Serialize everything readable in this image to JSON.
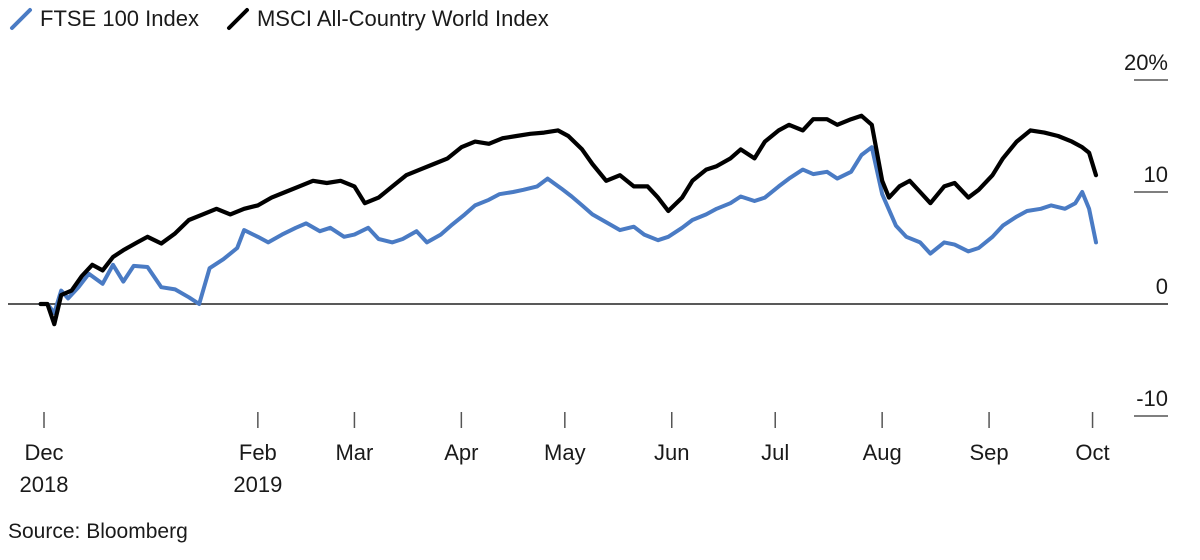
{
  "legend": {
    "items": [
      {
        "label": "FTSE 100 Index",
        "color": "#4a7bc4"
      },
      {
        "label": "MSCI All-Country World Index",
        "color": "#000000"
      }
    ],
    "placement": "top-left"
  },
  "source": "Source: Bloomberg",
  "chart_data": {
    "type": "line",
    "title": "",
    "xlabel": "",
    "ylabel": "",
    "y_unit_suffix": "%",
    "ylim": [
      -10,
      20
    ],
    "yticks": [
      20,
      10,
      0,
      -10
    ],
    "ytick_labels": [
      "20%",
      "10",
      "0",
      "-10"
    ],
    "grid": false,
    "zero_line": true,
    "x_range": [
      "2018-12-01",
      "2019-10-02"
    ],
    "x_ticks": [
      {
        "date": "2018-12-01",
        "label": [
          "Dec",
          "2018"
        ]
      },
      {
        "date": "2019-02-01",
        "label": [
          "Feb",
          "2019"
        ]
      },
      {
        "date": "2019-03-01",
        "label": [
          "Mar"
        ]
      },
      {
        "date": "2019-04-01",
        "label": [
          "Apr"
        ]
      },
      {
        "date": "2019-05-01",
        "label": [
          "May"
        ]
      },
      {
        "date": "2019-06-01",
        "label": [
          "Jun"
        ]
      },
      {
        "date": "2019-07-01",
        "label": [
          "Jul"
        ]
      },
      {
        "date": "2019-08-01",
        "label": [
          "Aug"
        ]
      },
      {
        "date": "2019-09-01",
        "label": [
          "Sep"
        ]
      },
      {
        "date": "2019-10-01",
        "label": [
          "Oct"
        ]
      }
    ],
    "series": [
      {
        "name": "FTSE 100 Index",
        "color": "#4a7bc4",
        "points": [
          [
            "2018-11-30",
            0.0
          ],
          [
            "2018-12-02",
            0.0
          ],
          [
            "2018-12-04",
            -0.8
          ],
          [
            "2018-12-06",
            1.2
          ],
          [
            "2018-12-08",
            0.5
          ],
          [
            "2018-12-11",
            1.5
          ],
          [
            "2018-12-14",
            2.7
          ],
          [
            "2018-12-18",
            1.8
          ],
          [
            "2018-12-21",
            3.5
          ],
          [
            "2018-12-24",
            2.0
          ],
          [
            "2018-12-27",
            3.4
          ],
          [
            "2018-12-31",
            3.3
          ],
          [
            "2019-01-04",
            1.5
          ],
          [
            "2019-01-08",
            1.3
          ],
          [
            "2019-01-12",
            0.6
          ],
          [
            "2019-01-15",
            0.0
          ],
          [
            "2019-01-18",
            3.2
          ],
          [
            "2019-01-22",
            4.0
          ],
          [
            "2019-01-26",
            5.0
          ],
          [
            "2019-01-28",
            6.6
          ],
          [
            "2019-02-01",
            6.0
          ],
          [
            "2019-02-04",
            5.5
          ],
          [
            "2019-02-08",
            6.2
          ],
          [
            "2019-02-12",
            6.8
          ],
          [
            "2019-02-15",
            7.2
          ],
          [
            "2019-02-19",
            6.5
          ],
          [
            "2019-02-22",
            6.8
          ],
          [
            "2019-02-26",
            6.0
          ],
          [
            "2019-03-01",
            6.2
          ],
          [
            "2019-03-05",
            6.8
          ],
          [
            "2019-03-08",
            5.8
          ],
          [
            "2019-03-12",
            5.5
          ],
          [
            "2019-03-15",
            5.8
          ],
          [
            "2019-03-19",
            6.5
          ],
          [
            "2019-03-22",
            5.5
          ],
          [
            "2019-03-26",
            6.2
          ],
          [
            "2019-03-29",
            7.0
          ],
          [
            "2019-04-02",
            8.0
          ],
          [
            "2019-04-05",
            8.8
          ],
          [
            "2019-04-09",
            9.3
          ],
          [
            "2019-04-12",
            9.8
          ],
          [
            "2019-04-16",
            10.0
          ],
          [
            "2019-04-19",
            10.2
          ],
          [
            "2019-04-23",
            10.5
          ],
          [
            "2019-04-26",
            11.2
          ],
          [
            "2019-04-30",
            10.3
          ],
          [
            "2019-05-03",
            9.6
          ],
          [
            "2019-05-06",
            8.8
          ],
          [
            "2019-05-09",
            8.0
          ],
          [
            "2019-05-13",
            7.3
          ],
          [
            "2019-05-17",
            6.6
          ],
          [
            "2019-05-21",
            6.9
          ],
          [
            "2019-05-24",
            6.2
          ],
          [
            "2019-05-28",
            5.7
          ],
          [
            "2019-05-31",
            6.0
          ],
          [
            "2019-06-04",
            6.8
          ],
          [
            "2019-06-07",
            7.5
          ],
          [
            "2019-06-11",
            8.0
          ],
          [
            "2019-06-14",
            8.5
          ],
          [
            "2019-06-18",
            9.0
          ],
          [
            "2019-06-21",
            9.6
          ],
          [
            "2019-06-25",
            9.2
          ],
          [
            "2019-06-28",
            9.5
          ],
          [
            "2019-07-02",
            10.5
          ],
          [
            "2019-07-05",
            11.2
          ],
          [
            "2019-07-09",
            12.0
          ],
          [
            "2019-07-12",
            11.6
          ],
          [
            "2019-07-16",
            11.8
          ],
          [
            "2019-07-19",
            11.2
          ],
          [
            "2019-07-23",
            11.8
          ],
          [
            "2019-07-26",
            13.3
          ],
          [
            "2019-07-29",
            14.0
          ],
          [
            "2019-08-01",
            9.8
          ],
          [
            "2019-08-05",
            7.0
          ],
          [
            "2019-08-08",
            6.0
          ],
          [
            "2019-08-12",
            5.5
          ],
          [
            "2019-08-15",
            4.5
          ],
          [
            "2019-08-19",
            5.5
          ],
          [
            "2019-08-22",
            5.3
          ],
          [
            "2019-08-26",
            4.7
          ],
          [
            "2019-08-29",
            5.0
          ],
          [
            "2019-09-02",
            6.0
          ],
          [
            "2019-09-05",
            7.0
          ],
          [
            "2019-09-09",
            7.8
          ],
          [
            "2019-09-12",
            8.3
          ],
          [
            "2019-09-16",
            8.5
          ],
          [
            "2019-09-19",
            8.8
          ],
          [
            "2019-09-23",
            8.5
          ],
          [
            "2019-09-26",
            9.0
          ],
          [
            "2019-09-28",
            10.0
          ],
          [
            "2019-09-30",
            8.5
          ],
          [
            "2019-10-02",
            5.5
          ]
        ]
      },
      {
        "name": "MSCI All-Country World Index",
        "color": "#000000",
        "points": [
          [
            "2018-11-30",
            0.0
          ],
          [
            "2018-12-02",
            0.0
          ],
          [
            "2018-12-04",
            -1.8
          ],
          [
            "2018-12-06",
            0.8
          ],
          [
            "2018-12-09",
            1.2
          ],
          [
            "2018-12-12",
            2.5
          ],
          [
            "2018-12-15",
            3.5
          ],
          [
            "2018-12-18",
            3.0
          ],
          [
            "2018-12-21",
            4.2
          ],
          [
            "2018-12-24",
            4.8
          ],
          [
            "2018-12-28",
            5.5
          ],
          [
            "2018-12-31",
            6.0
          ],
          [
            "2019-01-04",
            5.4
          ],
          [
            "2019-01-08",
            6.3
          ],
          [
            "2019-01-12",
            7.5
          ],
          [
            "2019-01-16",
            8.0
          ],
          [
            "2019-01-20",
            8.5
          ],
          [
            "2019-01-24",
            8.0
          ],
          [
            "2019-01-28",
            8.5
          ],
          [
            "2019-02-01",
            8.8
          ],
          [
            "2019-02-05",
            9.5
          ],
          [
            "2019-02-09",
            10.0
          ],
          [
            "2019-02-13",
            10.5
          ],
          [
            "2019-02-17",
            11.0
          ],
          [
            "2019-02-21",
            10.8
          ],
          [
            "2019-02-25",
            11.0
          ],
          [
            "2019-03-01",
            10.5
          ],
          [
            "2019-03-04",
            9.0
          ],
          [
            "2019-03-08",
            9.5
          ],
          [
            "2019-03-12",
            10.5
          ],
          [
            "2019-03-16",
            11.5
          ],
          [
            "2019-03-20",
            12.0
          ],
          [
            "2019-03-24",
            12.5
          ],
          [
            "2019-03-28",
            13.0
          ],
          [
            "2019-04-01",
            14.0
          ],
          [
            "2019-04-05",
            14.5
          ],
          [
            "2019-04-09",
            14.3
          ],
          [
            "2019-04-13",
            14.8
          ],
          [
            "2019-04-17",
            15.0
          ],
          [
            "2019-04-21",
            15.2
          ],
          [
            "2019-04-25",
            15.3
          ],
          [
            "2019-04-29",
            15.5
          ],
          [
            "2019-05-02",
            15.0
          ],
          [
            "2019-05-06",
            13.8
          ],
          [
            "2019-05-09",
            12.5
          ],
          [
            "2019-05-13",
            11.0
          ],
          [
            "2019-05-17",
            11.5
          ],
          [
            "2019-05-21",
            10.5
          ],
          [
            "2019-05-25",
            10.5
          ],
          [
            "2019-05-28",
            9.5
          ],
          [
            "2019-05-31",
            8.3
          ],
          [
            "2019-06-04",
            9.5
          ],
          [
            "2019-06-07",
            11.0
          ],
          [
            "2019-06-11",
            12.0
          ],
          [
            "2019-06-14",
            12.3
          ],
          [
            "2019-06-18",
            13.0
          ],
          [
            "2019-06-21",
            13.8
          ],
          [
            "2019-06-25",
            13.0
          ],
          [
            "2019-06-28",
            14.5
          ],
          [
            "2019-07-02",
            15.5
          ],
          [
            "2019-07-05",
            16.0
          ],
          [
            "2019-07-09",
            15.5
          ],
          [
            "2019-07-12",
            16.5
          ],
          [
            "2019-07-16",
            16.5
          ],
          [
            "2019-07-19",
            16.0
          ],
          [
            "2019-07-23",
            16.5
          ],
          [
            "2019-07-26",
            16.8
          ],
          [
            "2019-07-29",
            16.0
          ],
          [
            "2019-08-01",
            11.0
          ],
          [
            "2019-08-03",
            9.5
          ],
          [
            "2019-08-06",
            10.5
          ],
          [
            "2019-08-09",
            11.0
          ],
          [
            "2019-08-12",
            10.0
          ],
          [
            "2019-08-15",
            9.0
          ],
          [
            "2019-08-19",
            10.5
          ],
          [
            "2019-08-22",
            10.8
          ],
          [
            "2019-08-26",
            9.5
          ],
          [
            "2019-08-29",
            10.2
          ],
          [
            "2019-09-02",
            11.5
          ],
          [
            "2019-09-05",
            13.0
          ],
          [
            "2019-09-09",
            14.5
          ],
          [
            "2019-09-13",
            15.5
          ],
          [
            "2019-09-17",
            15.3
          ],
          [
            "2019-09-21",
            15.0
          ],
          [
            "2019-09-25",
            14.5
          ],
          [
            "2019-09-28",
            14.0
          ],
          [
            "2019-09-30",
            13.5
          ],
          [
            "2019-10-02",
            11.5
          ]
        ]
      }
    ]
  }
}
